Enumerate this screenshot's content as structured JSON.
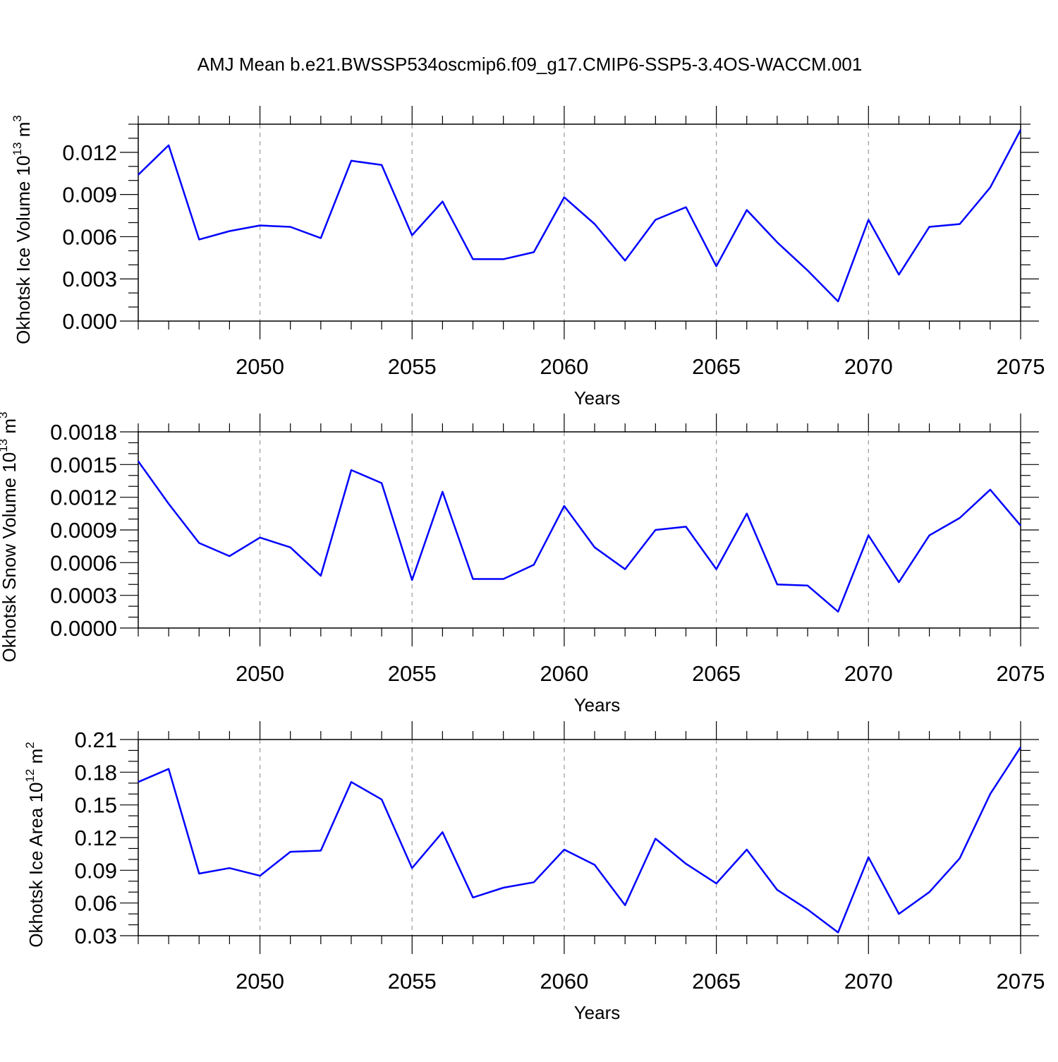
{
  "title": "AMJ Mean b.e21.BWSSP534oscmip6.f09_g17.CMIP6-SSP5-3.4OS-WACCM.001",
  "colors": {
    "line": "#0000ff",
    "axis": "#000000",
    "grid": "#999999"
  },
  "chart_data": [
    {
      "type": "line",
      "name": "ice-volume",
      "ylabel": "Okhotsk Ice Volume 10",
      "ylabel_exp": "13",
      "ylabel_unit": " m",
      "ylabel_unit_exp": "3",
      "xlabel": "Years",
      "xlim": [
        2046,
        2075
      ],
      "ylim": [
        0.0,
        0.014
      ],
      "yticks": [
        0.0,
        0.003,
        0.006,
        0.009,
        0.012
      ],
      "ytick_labels": [
        "0.000",
        "0.003",
        "0.006",
        "0.009",
        "0.012"
      ],
      "yminor_step": 0.001,
      "xticks": [
        2050,
        2055,
        2060,
        2065,
        2070,
        2075
      ],
      "xtick_labels": [
        "2050",
        "2055",
        "2060",
        "2065",
        "2070",
        "2075"
      ],
      "x": [
        2046,
        2047,
        2048,
        2049,
        2050,
        2051,
        2052,
        2053,
        2054,
        2055,
        2056,
        2057,
        2058,
        2059,
        2060,
        2061,
        2062,
        2063,
        2064,
        2065,
        2066,
        2067,
        2068,
        2069,
        2070,
        2071,
        2072,
        2073,
        2074,
        2075
      ],
      "values": [
        0.0104,
        0.0125,
        0.0058,
        0.0064,
        0.0068,
        0.0067,
        0.0059,
        0.0114,
        0.0111,
        0.0061,
        0.0085,
        0.0044,
        0.0044,
        0.0049,
        0.0088,
        0.0069,
        0.0043,
        0.0072,
        0.0081,
        0.0039,
        0.0079,
        0.0056,
        0.0036,
        0.0014,
        0.0072,
        0.0033,
        0.0067,
        0.0069,
        0.0095,
        0.0136
      ]
    },
    {
      "type": "line",
      "name": "snow-volume",
      "ylabel": "Okhotsk Snow Volume 10",
      "ylabel_exp": "13",
      "ylabel_unit": " m",
      "ylabel_unit_exp": "3",
      "xlabel": "Years",
      "xlim": [
        2046,
        2075
      ],
      "ylim": [
        0.0,
        0.0018
      ],
      "yticks": [
        0.0,
        0.0003,
        0.0006,
        0.0009,
        0.0012,
        0.0015,
        0.0018
      ],
      "ytick_labels": [
        "0.0000",
        "0.0003",
        "0.0006",
        "0.0009",
        "0.0012",
        "0.0015",
        "0.0018"
      ],
      "yminor_step": 0.0001,
      "xticks": [
        2050,
        2055,
        2060,
        2065,
        2070,
        2075
      ],
      "xtick_labels": [
        "2050",
        "2055",
        "2060",
        "2065",
        "2070",
        "2075"
      ],
      "x": [
        2046,
        2047,
        2048,
        2049,
        2050,
        2051,
        2052,
        2053,
        2054,
        2055,
        2056,
        2057,
        2058,
        2059,
        2060,
        2061,
        2062,
        2063,
        2064,
        2065,
        2066,
        2067,
        2068,
        2069,
        2070,
        2071,
        2072,
        2073,
        2074,
        2075
      ],
      "values": [
        0.00153,
        0.00114,
        0.00078,
        0.00066,
        0.00083,
        0.00074,
        0.00048,
        0.00145,
        0.00133,
        0.00044,
        0.00125,
        0.00045,
        0.00045,
        0.00058,
        0.00112,
        0.00074,
        0.00054,
        0.0009,
        0.00093,
        0.00054,
        0.00105,
        0.0004,
        0.00039,
        0.00015,
        0.00085,
        0.00042,
        0.00085,
        0.00101,
        0.00127,
        0.00094
      ]
    },
    {
      "type": "line",
      "name": "ice-area",
      "ylabel": "Okhotsk Ice Area 10",
      "ylabel_exp": "12",
      "ylabel_unit": " m",
      "ylabel_unit_exp": "2",
      "xlabel": "Years",
      "xlim": [
        2046,
        2075
      ],
      "ylim": [
        0.03,
        0.21
      ],
      "yticks": [
        0.03,
        0.06,
        0.09,
        0.12,
        0.15,
        0.18,
        0.21
      ],
      "ytick_labels": [
        "0.03",
        "0.06",
        "0.09",
        "0.12",
        "0.15",
        "0.18",
        "0.21"
      ],
      "yminor_step": 0.01,
      "xticks": [
        2050,
        2055,
        2060,
        2065,
        2070,
        2075
      ],
      "xtick_labels": [
        "2050",
        "2055",
        "2060",
        "2065",
        "2070",
        "2075"
      ],
      "x": [
        2046,
        2047,
        2048,
        2049,
        2050,
        2051,
        2052,
        2053,
        2054,
        2055,
        2056,
        2057,
        2058,
        2059,
        2060,
        2061,
        2062,
        2063,
        2064,
        2065,
        2066,
        2067,
        2068,
        2069,
        2070,
        2071,
        2072,
        2073,
        2074,
        2075
      ],
      "values": [
        0.171,
        0.183,
        0.087,
        0.092,
        0.085,
        0.107,
        0.108,
        0.171,
        0.155,
        0.092,
        0.125,
        0.065,
        0.074,
        0.079,
        0.109,
        0.095,
        0.058,
        0.119,
        0.096,
        0.078,
        0.109,
        0.072,
        0.054,
        0.033,
        0.102,
        0.05,
        0.07,
        0.101,
        0.16,
        0.203
      ]
    }
  ]
}
